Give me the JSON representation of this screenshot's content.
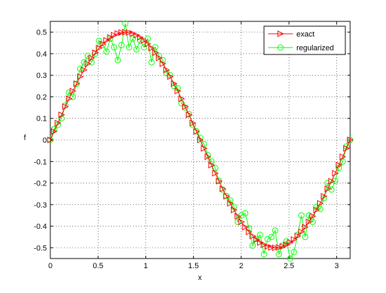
{
  "chart_data": {
    "type": "line",
    "title": "",
    "xlabel": "x",
    "ylabel": "f",
    "xlim": [
      0,
      3.1416
    ],
    "ylim": [
      -0.55,
      0.55
    ],
    "xticks": [
      0,
      0.5,
      1,
      1.5,
      2,
      2.5,
      3
    ],
    "yticks": [
      -0.5,
      -0.4,
      -0.3,
      -0.2,
      -0.1,
      0,
      0.1,
      0.2,
      0.3,
      0.4,
      0.5
    ],
    "xtick_labels": [
      "0",
      "0.5",
      "1",
      "1.5",
      "2",
      "2.5",
      "3"
    ],
    "ytick_labels": [
      "-0.5",
      "-0.4",
      "-0.3",
      "-0.2",
      "-0.1",
      "0",
      "0.1",
      "0.2",
      "0.3",
      "0.4",
      "0.5"
    ],
    "grid": "dotted",
    "legend_placement": "top-right",
    "series": [
      {
        "name": "exact",
        "color": "#ff0000",
        "marker": "triangle-right",
        "x": [
          0,
          0.0393,
          0.0785,
          0.1178,
          0.1571,
          0.1963,
          0.2356,
          0.2749,
          0.3142,
          0.3534,
          0.3927,
          0.432,
          0.4712,
          0.5105,
          0.5498,
          0.589,
          0.6283,
          0.6676,
          0.7069,
          0.7461,
          0.7854,
          0.8247,
          0.8639,
          0.9032,
          0.9425,
          0.9817,
          1.021,
          1.0603,
          1.0996,
          1.1388,
          1.1781,
          1.2174,
          1.2566,
          1.2959,
          1.3352,
          1.3744,
          1.4137,
          1.453,
          1.4923,
          1.5315,
          1.5708,
          1.6101,
          1.6493,
          1.6886,
          1.7279,
          1.7671,
          1.8064,
          1.8457,
          1.885,
          1.9242,
          1.9635,
          2.0028,
          2.042,
          2.0813,
          2.1206,
          2.1598,
          2.1991,
          2.2384,
          2.2777,
          2.3169,
          2.3562,
          2.3955,
          2.4347,
          2.474,
          2.5133,
          2.5525,
          2.5918,
          2.6311,
          2.6704,
          2.7096,
          2.7489,
          2.7882,
          2.8274,
          2.8667,
          2.906,
          2.9452,
          2.9845,
          3.0238,
          3.0631,
          3.1023,
          3.1416
        ],
        "values": [
          0,
          0.0392,
          0.0782,
          0.1167,
          0.1545,
          0.1913,
          0.227,
          0.2612,
          0.2939,
          0.3247,
          0.3536,
          0.3802,
          0.4045,
          0.4263,
          0.4455,
          0.4619,
          0.4755,
          0.4862,
          0.4938,
          0.4985,
          0.5,
          0.4985,
          0.4938,
          0.4862,
          0.4755,
          0.4619,
          0.4455,
          0.4263,
          0.4045,
          0.3802,
          0.3536,
          0.3247,
          0.2939,
          0.2612,
          0.227,
          0.1913,
          0.1545,
          0.1167,
          0.0782,
          0.0392,
          0,
          -0.0392,
          -0.0782,
          -0.1167,
          -0.1545,
          -0.1913,
          -0.227,
          -0.2612,
          -0.2939,
          -0.3247,
          -0.3536,
          -0.3802,
          -0.4045,
          -0.4263,
          -0.4455,
          -0.4619,
          -0.4755,
          -0.4862,
          -0.4938,
          -0.4985,
          -0.5,
          -0.4985,
          -0.4938,
          -0.4862,
          -0.4755,
          -0.4619,
          -0.4455,
          -0.4263,
          -0.4045,
          -0.3802,
          -0.3536,
          -0.3247,
          -0.2939,
          -0.2612,
          -0.227,
          -0.1913,
          -0.1545,
          -0.1167,
          -0.0782,
          -0.0392,
          0
        ]
      },
      {
        "name": "regularized",
        "color": "#00ff00",
        "marker": "circle",
        "x": [
          0,
          0.0393,
          0.0785,
          0.1178,
          0.1571,
          0.1963,
          0.2356,
          0.2749,
          0.3142,
          0.3534,
          0.3927,
          0.432,
          0.4712,
          0.5105,
          0.5498,
          0.589,
          0.6283,
          0.6676,
          0.7069,
          0.7461,
          0.7854,
          0.8247,
          0.8639,
          0.9032,
          0.9425,
          0.9817,
          1.021,
          1.0603,
          1.0996,
          1.1388,
          1.1781,
          1.2174,
          1.2566,
          1.2959,
          1.3352,
          1.3744,
          1.4137,
          1.453,
          1.4923,
          1.5315,
          1.5708,
          1.6101,
          1.6493,
          1.6886,
          1.7279,
          1.7671,
          1.8064,
          1.8457,
          1.885,
          1.9242,
          1.9635,
          2.0028,
          2.042,
          2.0813,
          2.1206,
          2.1598,
          2.1991,
          2.2384,
          2.2777,
          2.3169,
          2.3562,
          2.3955,
          2.4347,
          2.474,
          2.5133,
          2.5525,
          2.5918,
          2.6311,
          2.6704,
          2.7096,
          2.7489,
          2.7882,
          2.8274,
          2.8667,
          2.906,
          2.9452,
          2.9845,
          3.0238,
          3.0631,
          3.1023,
          3.1416
        ],
        "values": [
          0,
          0.05,
          0.07,
          0.1,
          0.16,
          0.22,
          0.2,
          0.26,
          0.33,
          0.36,
          0.39,
          0.36,
          0.4,
          0.46,
          0.44,
          0.41,
          0.47,
          0.43,
          0.37,
          0.44,
          0.54,
          0.43,
          0.47,
          0.42,
          0.46,
          0.43,
          0.47,
          0.36,
          0.43,
          0.39,
          0.37,
          0.31,
          0.3,
          0.25,
          0.24,
          0.17,
          0.15,
          0.12,
          0.07,
          0.04,
          0.01,
          -0.02,
          -0.07,
          -0.1,
          -0.13,
          -0.19,
          -0.23,
          -0.26,
          -0.28,
          -0.31,
          -0.38,
          -0.35,
          -0.34,
          -0.41,
          -0.49,
          -0.46,
          -0.44,
          -0.53,
          -0.46,
          -0.45,
          -0.42,
          -0.53,
          -0.49,
          -0.47,
          -0.55,
          -0.52,
          -0.44,
          -0.35,
          -0.45,
          -0.35,
          -0.38,
          -0.31,
          -0.32,
          -0.27,
          -0.2,
          -0.23,
          -0.19,
          -0.13,
          -0.1,
          -0.03,
          0
        ]
      }
    ]
  }
}
